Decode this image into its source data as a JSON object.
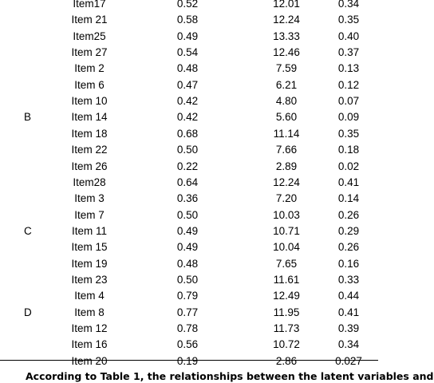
{
  "table": {
    "groups": [
      {
        "label": "B",
        "row_index": 7
      },
      {
        "label": "C",
        "row_index": 14
      },
      {
        "label": "D",
        "row_index": 19
      }
    ],
    "rows": [
      {
        "item": "Item17",
        "a": "0.52",
        "b": "12.01",
        "c": "0.34"
      },
      {
        "item": "Item 21",
        "a": "0.58",
        "b": "12.24",
        "c": "0.35"
      },
      {
        "item": "Item25",
        "a": "0.49",
        "b": "13.33",
        "c": "0.40"
      },
      {
        "item": "Item 27",
        "a": "0.54",
        "b": "12.46",
        "c": "0.37"
      },
      {
        "item": "Item 2",
        "a": "0.48",
        "b": "7.59",
        "c": "0.13"
      },
      {
        "item": "Item 6",
        "a": "0.47",
        "b": "6.21",
        "c": "0.12"
      },
      {
        "item": "Item 10",
        "a": "0.42",
        "b": "4.80",
        "c": "0.07"
      },
      {
        "item": "Item 14",
        "a": "0.42",
        "b": "5.60",
        "c": "0.09"
      },
      {
        "item": "Item 18",
        "a": "0.68",
        "b": "11.14",
        "c": "0.35"
      },
      {
        "item": "Item 22",
        "a": "0.50",
        "b": "7.66",
        "c": "0.18"
      },
      {
        "item": "Item 26",
        "a": "0.22",
        "b": "2.89",
        "c": "0.02"
      },
      {
        "item": "Item28",
        "a": "0.64",
        "b": "12.24",
        "c": "0.41"
      },
      {
        "item": "Item 3",
        "a": "0.36",
        "b": "7.20",
        "c": "0.14"
      },
      {
        "item": "Item 7",
        "a": "0.50",
        "b": "10.03",
        "c": "0.26"
      },
      {
        "item": "Item 11",
        "a": "0.49",
        "b": "10.71",
        "c": "0.29"
      },
      {
        "item": "Item 15",
        "a": "0.49",
        "b": "10.04",
        "c": "0.26"
      },
      {
        "item": "Item 19",
        "a": "0.48",
        "b": "7.65",
        "c": "0.16"
      },
      {
        "item": "Item 23",
        "a": "0.50",
        "b": "11.61",
        "c": "0.33"
      },
      {
        "item": "Item 4",
        "a": "0.79",
        "b": "12.49",
        "c": "0.44"
      },
      {
        "item": "Item 8",
        "a": "0.77",
        "b": "11.95",
        "c": "0.41"
      },
      {
        "item": "Item 12",
        "a": "0.78",
        "b": "11.73",
        "c": "0.39"
      },
      {
        "item": "Item 16",
        "a": "0.56",
        "b": "10.72",
        "c": "0.34"
      },
      {
        "item": "Item 20",
        "a": "0.19",
        "b": "2.86",
        "c": "0.027"
      }
    ]
  },
  "caption": "According to Table 1, the relationships between the latent variables and"
}
